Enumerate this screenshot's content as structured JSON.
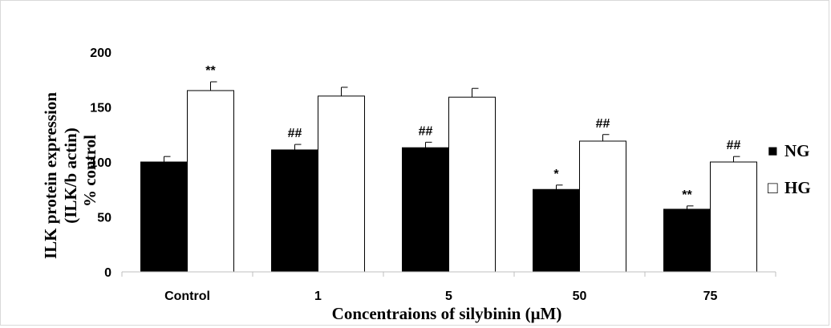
{
  "chart_data": {
    "type": "bar",
    "categories": [
      "Control",
      "1",
      "5",
      "50",
      "75"
    ],
    "series": [
      {
        "name": "NG",
        "color": "#000000",
        "values": [
          100,
          111,
          113,
          75,
          57
        ],
        "errors": [
          5,
          5,
          5,
          4,
          3
        ],
        "annotations": [
          "",
          "##",
          "##",
          "*",
          "**"
        ]
      },
      {
        "name": "HG",
        "color": "#ffffff",
        "values": [
          165,
          160,
          159,
          119,
          100
        ],
        "errors": [
          8,
          8,
          8,
          6,
          5
        ],
        "annotations": [
          "**",
          "",
          "",
          "##",
          "##"
        ]
      }
    ],
    "xlabel": "Concentraions of silybinin (μM)",
    "ylabel_lines": [
      "ILK protein expression",
      "(ILK/b actin)",
      "% control"
    ],
    "yticks": [
      "0",
      "50",
      "100",
      "150",
      "200"
    ],
    "ylim": [
      0,
      200
    ],
    "grid": false,
    "legend_position": "right",
    "legend": [
      {
        "symbol": "■",
        "label": "NG"
      },
      {
        "symbol": "□",
        "label": "HG"
      }
    ]
  }
}
